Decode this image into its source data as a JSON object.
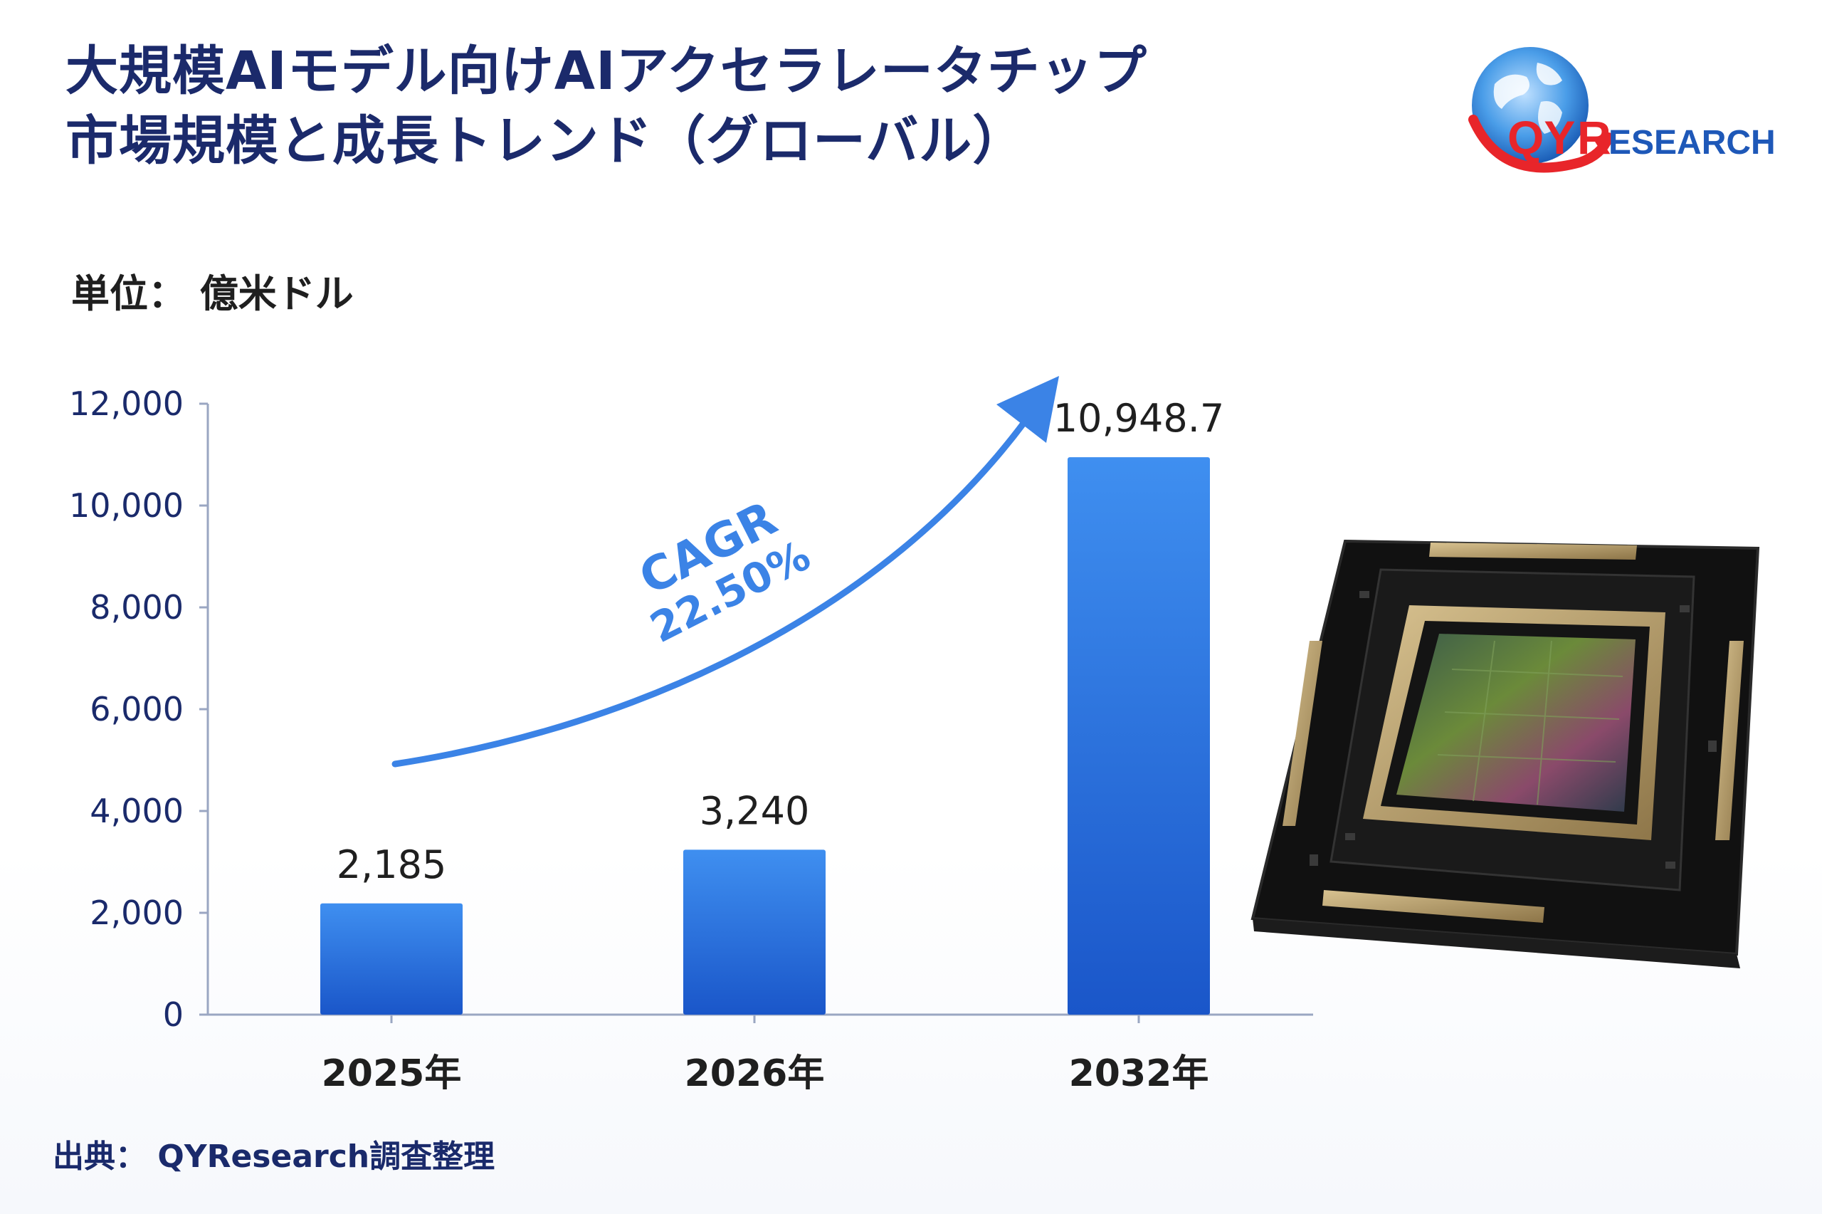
{
  "title_line1": "大規模AIモデル向けAIアクセラレータチップ",
  "title_line2": "市場規模と成長トレンド（グローバル）",
  "unit_label": "単位： 億米ドル",
  "source_label": "出典： QYResearch調査整理",
  "logo": {
    "text_qy": "QY",
    "text_r": "R",
    "text_rest": "ESEARCH",
    "icon": "globe-icon",
    "colors": {
      "globe": "#2a7fd6",
      "red": "#e8252a",
      "blue": "#1e58b8"
    }
  },
  "cagr": {
    "label": "CAGR",
    "value": "22.50%"
  },
  "chip_image": {
    "icon": "ai-accelerator-chip-icon"
  },
  "colors": {
    "bar_top": "#3f8ff0",
    "bar_bottom": "#1a56c9",
    "axis": "#9aa6c2",
    "arrow": "#3b83e6",
    "title": "#1b2a6b"
  },
  "chart_data": {
    "type": "bar",
    "title": "",
    "xlabel": "",
    "ylabel": "",
    "ylim": [
      0,
      12000
    ],
    "yticks": [
      0,
      2000,
      4000,
      6000,
      8000,
      10000,
      12000
    ],
    "ytick_labels": [
      "0",
      "2,000",
      "4,000",
      "6,000",
      "8,000",
      "10,000",
      "12,000"
    ],
    "categories": [
      "2025年",
      "2026年",
      "2032年"
    ],
    "values": [
      2185,
      3240,
      10948.7
    ],
    "value_labels": [
      "2,185",
      "3,240",
      "10,948.7"
    ],
    "grid": false,
    "legend": "none"
  }
}
